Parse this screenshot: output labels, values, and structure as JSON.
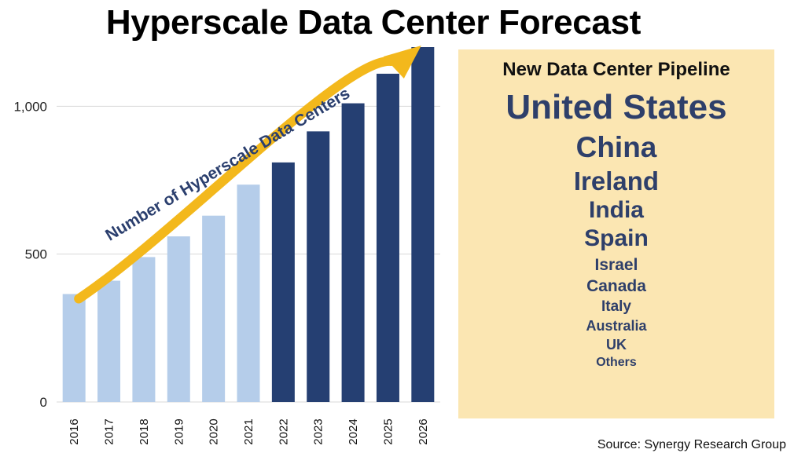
{
  "title": "Hyperscale Data Center Forecast",
  "chart_data": {
    "type": "bar",
    "categories": [
      "2016",
      "2017",
      "2018",
      "2019",
      "2020",
      "2021",
      "2022",
      "2023",
      "2024",
      "2025",
      "2026"
    ],
    "values": [
      365,
      410,
      490,
      560,
      630,
      735,
      810,
      915,
      1010,
      1110,
      1210
    ],
    "forecast_from": "2022",
    "ylim": [
      0,
      1200
    ],
    "yticks": [
      {
        "value": 0,
        "label": "0"
      },
      {
        "value": 500,
        "label": "500"
      },
      {
        "value": 1000,
        "label": "1,000"
      }
    ],
    "colors": {
      "actual": "#b5cdea",
      "forecast": "#253f72",
      "arrow": "#f3b81c",
      "grid": "#d9d9d9"
    },
    "arrow_label": "Number of Hyperscale Data Centers"
  },
  "pipeline": {
    "heading": "New Data Center Pipeline",
    "countries": [
      "United States",
      "China",
      "Ireland",
      "India",
      "Spain",
      "Israel",
      "Canada",
      "Italy",
      "Australia",
      "UK",
      "Others"
    ]
  },
  "source": "Source: Synergy Research Group"
}
